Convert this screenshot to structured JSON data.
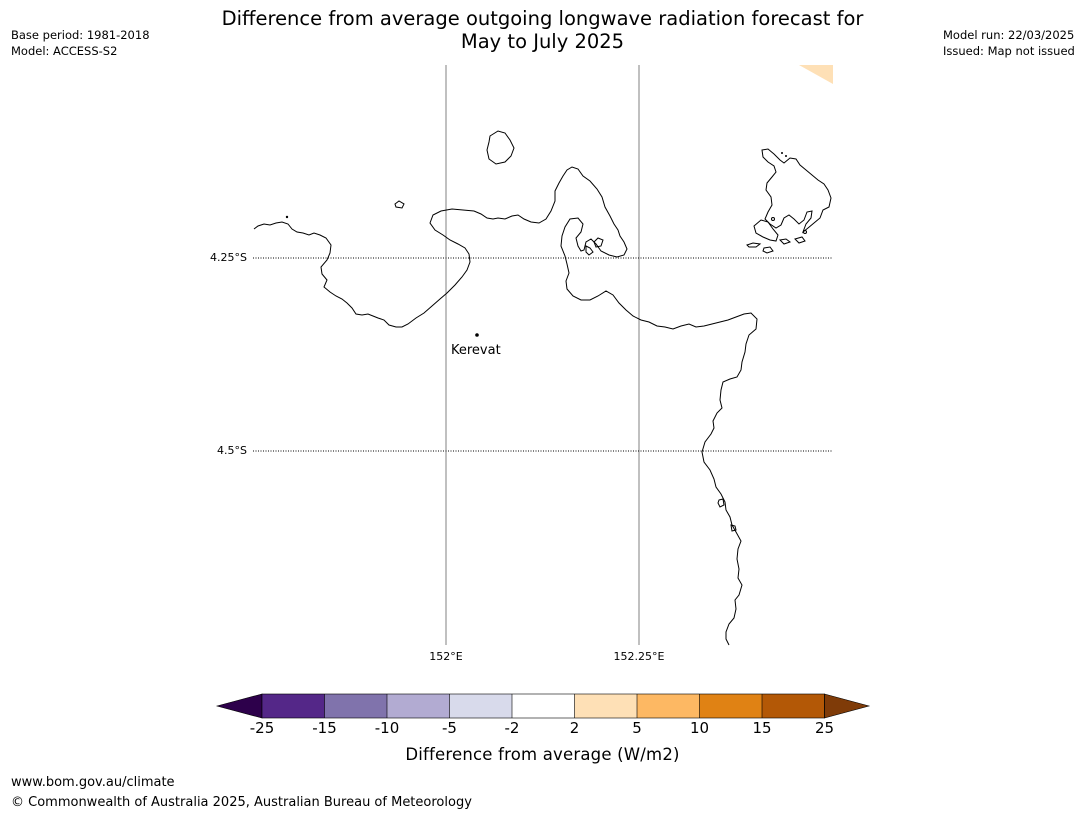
{
  "title_line1": "Difference from average outgoing longwave radiation forecast for",
  "title_line2": "May to July 2025",
  "meta": {
    "base_period": "Base period: 1981-2018",
    "model": "Model: ACCESS-S2",
    "model_run": "Model run: 22/03/2025",
    "issued": "Issued: Map not issued"
  },
  "map": {
    "lat_labels": [
      "4.25°S",
      "4.5°S"
    ],
    "lon_labels": [
      "152°E",
      "152.25°E"
    ],
    "place": {
      "name": "Kerevat",
      "marker": "point-marker"
    },
    "coastline_color": "#000000",
    "gridline_color": "#808080"
  },
  "colorbar": {
    "label": "Difference from average (W/m2)",
    "ticks": [
      "-25",
      "-15",
      "-10",
      "-5",
      "-2",
      "2",
      "5",
      "10",
      "15",
      "25"
    ],
    "colors": [
      "#542788",
      "#8073ac",
      "#b2abd2",
      "#d8daeb",
      "#ffffff",
      "#fee0b6",
      "#fdb863",
      "#e08214",
      "#b35806"
    ],
    "under_color": "#2d004b",
    "over_color": "#7f3b08"
  },
  "footer": {
    "url": "www.bom.gov.au/climate",
    "copyright": "© Commonwealth of Australia 2025, Australian Bureau of Meteorology"
  }
}
